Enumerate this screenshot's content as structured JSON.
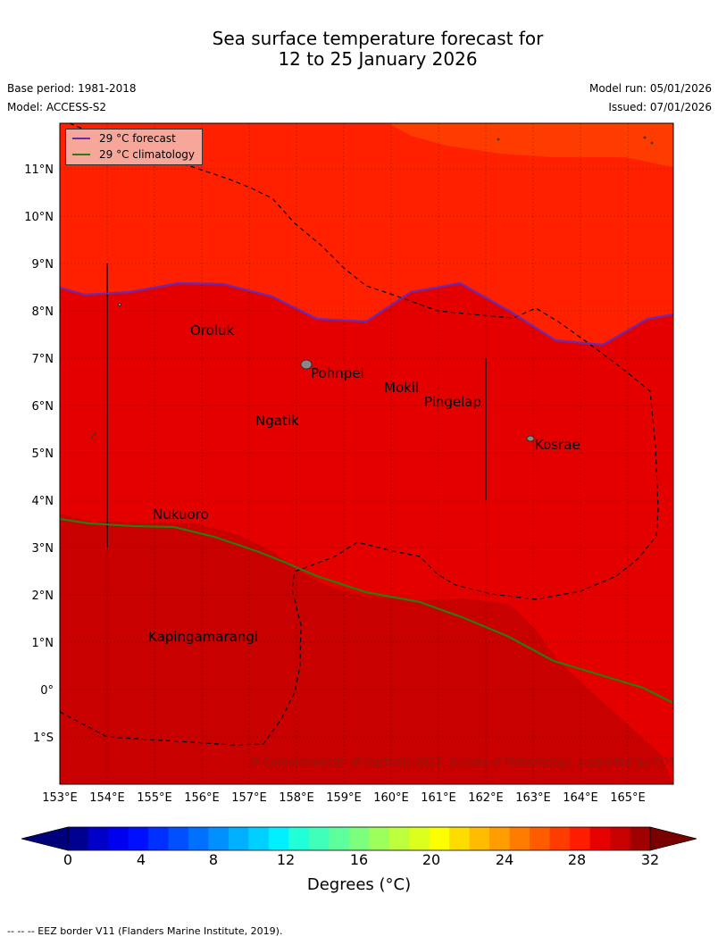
{
  "title_line1": "Sea surface temperature forecast for",
  "title_line2": "12 to 25 January 2026",
  "base_period": "Base period: 1981-2018",
  "model": "Model: ACCESS-S2",
  "model_run": "Model run: 05/01/2026",
  "issued": "Issued: 07/01/2026",
  "legend": {
    "forecast_label": "29 °C  forecast",
    "climatology_label": "29 °C  climatology",
    "forecast_color": "#6a2ab0",
    "climatology_color": "#2d7a10"
  },
  "places": [
    "Oroluk",
    "Pohnpei",
    "Mokil",
    "Pingelap",
    "Ngatik",
    "Kosrae",
    "Nukuoro",
    "Kapingamarangi"
  ],
  "lat_labels": [
    "11°N",
    "10°N",
    "9°N",
    "8°N",
    "7°N",
    "6°N",
    "5°N",
    "4°N",
    "3°N",
    "2°N",
    "1°N",
    "0°",
    "1°S"
  ],
  "lon_labels": [
    "153°E",
    "154°E",
    "155°E",
    "156°E",
    "157°E",
    "158°E",
    "159°E",
    "160°E",
    "161°E",
    "162°E",
    "163°E",
    "164°E",
    "165°E"
  ],
  "copyright": "© Commonwealth of Australia 2026, Bureau of Meteorology, supported by COSPPac",
  "colorbar": {
    "ticks": [
      "0",
      "4",
      "8",
      "12",
      "16",
      "20",
      "24",
      "28",
      "32"
    ],
    "label": "Degrees (°C)",
    "colors": [
      "#000090",
      "#0000c8",
      "#0000f0",
      "#0010ff",
      "#0030ff",
      "#0050ff",
      "#0070ff",
      "#0090ff",
      "#00b0ff",
      "#00d0ff",
      "#00f0ff",
      "#20ffd8",
      "#40ffb8",
      "#5cff9c",
      "#7cff7c",
      "#9cff5c",
      "#bcff3c",
      "#dcff1c",
      "#fcff00",
      "#ffdc00",
      "#ffbc00",
      "#ff9c00",
      "#ff7c00",
      "#ff5c00",
      "#ff3c00",
      "#ff1c00",
      "#e60000",
      "#c80000",
      "#a00000"
    ],
    "under_color": "#00007a",
    "over_color": "#7a0000"
  },
  "fill_colors": {
    "band_29_30": "#ff2000",
    "band_30_31": "#e50000",
    "band_31_32": "#c80000",
    "band_28_29": "#ff3c00"
  },
  "footnote": "--  --  -- EEZ border V11 (Flanders Marine Institute, 2019)."
}
